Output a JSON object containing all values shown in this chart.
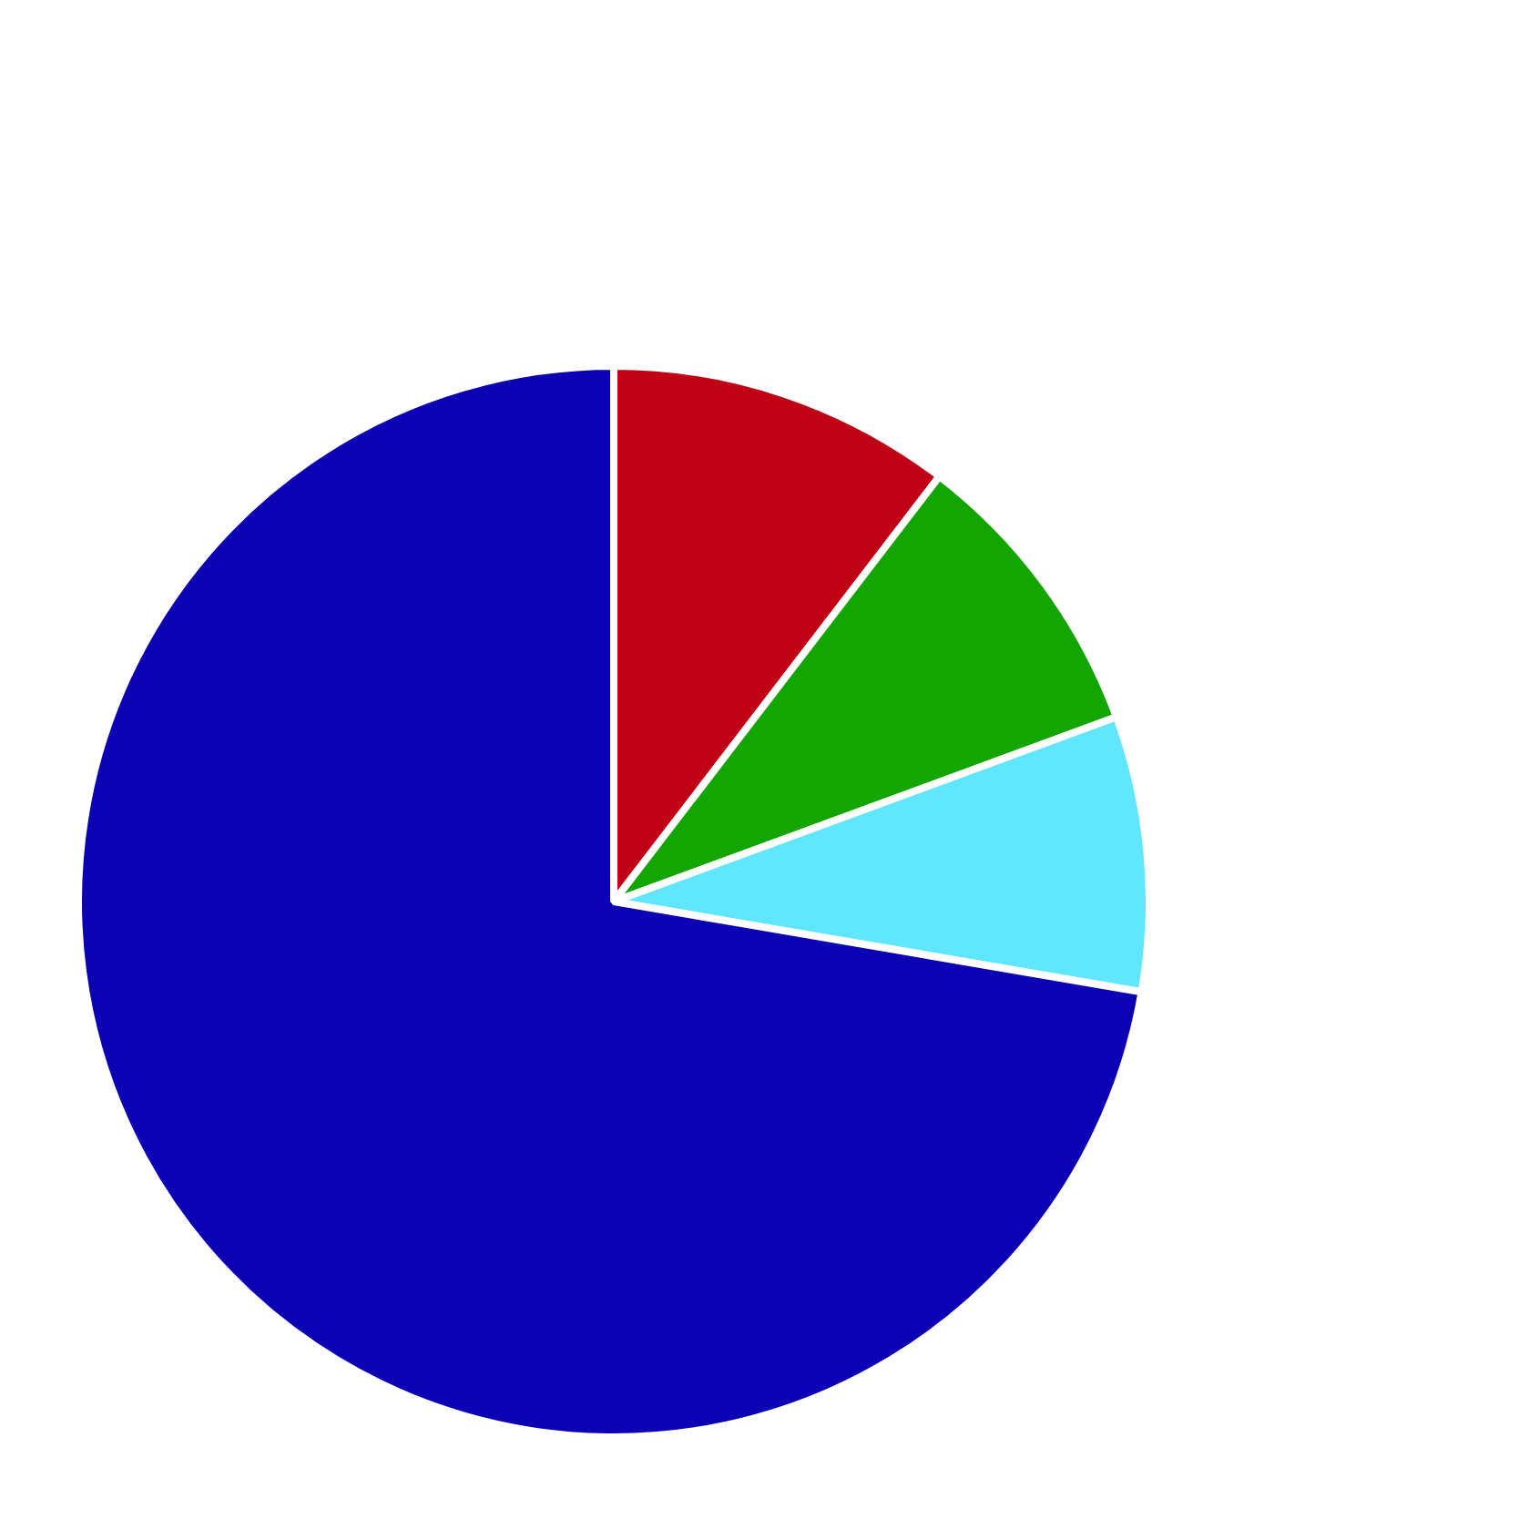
{
  "chart_data": {
    "type": "pie",
    "categories": [
      null,
      null,
      null,
      null
    ],
    "values": [
      10.4,
      9.0,
      8.3,
      72.3
    ],
    "colors": [
      "#bf0015",
      "#13a600",
      "#61e6ff",
      "#0c00b5"
    ]
  }
}
